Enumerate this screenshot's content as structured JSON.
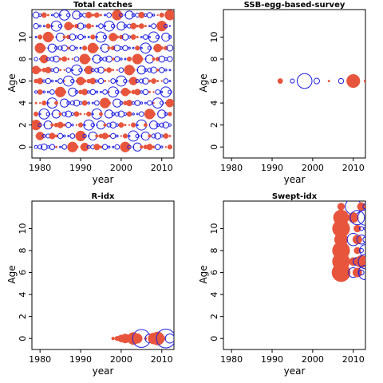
{
  "colors": {
    "positive": "#e8553d",
    "negative": "#1f1fe0",
    "axis": "#000000"
  },
  "chart_data": [
    {
      "type": "scatter",
      "subtype": "bubble-residuals",
      "title": "Total catches",
      "xlabel": "year",
      "ylabel": "Age",
      "xlim": [
        1978,
        2013
      ],
      "ylim": [
        -1,
        12.5
      ],
      "xticks": [
        1980,
        1990,
        2000,
        2010
      ],
      "yticks": [
        0,
        2,
        4,
        6,
        8,
        10
      ],
      "years": [
        1979,
        2012
      ],
      "ages": [
        0,
        12
      ],
      "size_pattern": [
        0.7,
        0.3,
        1.2,
        0.2,
        0.9,
        0.5,
        1.6,
        0.3,
        1.0,
        0.6,
        2.0,
        0.4,
        0.8
      ],
      "sign_pattern": [
        1,
        -1,
        -1,
        1,
        -1,
        1,
        -1,
        -1,
        1,
        -1,
        1,
        -1,
        1,
        -1,
        1,
        -1,
        -1
      ],
      "points": []
    },
    {
      "type": "scatter",
      "subtype": "bubble-residuals",
      "title": "SSB-egg-based-survey",
      "xlabel": "year",
      "ylabel": "Age",
      "xlim": [
        1978,
        2013
      ],
      "ylim": [
        -1,
        12.5
      ],
      "xticks": [
        1980,
        1990,
        2000,
        2010
      ],
      "yticks": [
        0,
        2,
        4,
        6,
        8,
        10
      ],
      "points": [
        {
          "year": 1992,
          "age": 6,
          "r": 1.0
        },
        {
          "year": 1995,
          "age": 6,
          "r": -0.8
        },
        {
          "year": 1998,
          "age": 6,
          "r": -2.9
        },
        {
          "year": 2001,
          "age": 6,
          "r": -1.1
        },
        {
          "year": 2004,
          "age": 6,
          "r": 0.4
        },
        {
          "year": 2007,
          "age": 6,
          "r": -1.0
        },
        {
          "year": 2010,
          "age": 6,
          "r": 2.6
        },
        {
          "year": 2013,
          "age": 6,
          "r": 0.6
        }
      ]
    },
    {
      "type": "scatter",
      "subtype": "bubble-residuals",
      "title": "R-idx",
      "xlabel": "year",
      "ylabel": "Age",
      "xlim": [
        1978,
        2013
      ],
      "ylim": [
        -1,
        12.5
      ],
      "xticks": [
        1980,
        1990,
        2000,
        2010
      ],
      "yticks": [
        0,
        2,
        4,
        6,
        8,
        10
      ],
      "points": [
        {
          "year": 1998,
          "age": 0,
          "r": 0.6
        },
        {
          "year": 1999,
          "age": 0,
          "r": 0.9
        },
        {
          "year": 2000,
          "age": 0,
          "r": 1.4
        },
        {
          "year": 2001,
          "age": 0,
          "r": 1.8
        },
        {
          "year": 2002,
          "age": 0,
          "r": 1.0
        },
        {
          "year": 2003,
          "age": 0,
          "r": 2.4
        },
        {
          "year": 2004,
          "age": 0,
          "r": 1.9
        },
        {
          "year": 2005,
          "age": 0,
          "r": -3.5
        },
        {
          "year": 2006,
          "age": 0,
          "r": 0.5
        },
        {
          "year": 2007,
          "age": 0,
          "r": -1.7
        },
        {
          "year": 2008,
          "age": 0,
          "r": 2.2
        },
        {
          "year": 2009,
          "age": 0,
          "r": 2.6
        },
        {
          "year": 2010,
          "age": 0,
          "r": 1.3
        },
        {
          "year": 2011,
          "age": 0,
          "r": -3.7
        },
        {
          "year": 2012,
          "age": 0,
          "r": -1.8
        }
      ]
    },
    {
      "type": "scatter",
      "subtype": "bubble-residuals",
      "title": "Swept-idx",
      "xlabel": "year",
      "ylabel": "Age",
      "xlim": [
        1978,
        2013
      ],
      "ylim": [
        -1,
        12.5
      ],
      "xticks": [
        1980,
        1990,
        2000,
        2010
      ],
      "yticks": [
        0,
        2,
        4,
        6,
        8,
        10
      ],
      "points": [
        {
          "year": 2007,
          "age": 12,
          "r": 1.4
        },
        {
          "year": 2010,
          "age": 12,
          "r": -3.1
        },
        {
          "year": 2012,
          "age": 12,
          "r": 1.6
        },
        {
          "year": 2013,
          "age": 12,
          "r": -1.0
        },
        {
          "year": 2007,
          "age": 11,
          "r": 3.0
        },
        {
          "year": 2010,
          "age": 11,
          "r": 2.0
        },
        {
          "year": 2011,
          "age": 11,
          "r": -2.8
        },
        {
          "year": 2013,
          "age": 11,
          "r": -3.0
        },
        {
          "year": 2007,
          "age": 10,
          "r": 3.4
        },
        {
          "year": 2011,
          "age": 10,
          "r": 1.4
        },
        {
          "year": 2012,
          "age": 10,
          "r": -0.8
        },
        {
          "year": 2013,
          "age": 10,
          "r": -0.6
        },
        {
          "year": 2007,
          "age": 9,
          "r": 2.6
        },
        {
          "year": 2010,
          "age": 9,
          "r": -2.4
        },
        {
          "year": 2011,
          "age": 9,
          "r": 1.8
        },
        {
          "year": 2012,
          "age": 9,
          "r": -1.8
        },
        {
          "year": 2013,
          "age": 9,
          "r": -1.0
        },
        {
          "year": 2007,
          "age": 8,
          "r": 3.4
        },
        {
          "year": 2011,
          "age": 8,
          "r": 1.3
        },
        {
          "year": 2012,
          "age": 8,
          "r": -0.8
        },
        {
          "year": 2013,
          "age": 8,
          "r": -2.3
        },
        {
          "year": 2007,
          "age": 7,
          "r": 3.4
        },
        {
          "year": 2010,
          "age": 7,
          "r": 1.6
        },
        {
          "year": 2011,
          "age": 7,
          "r": -1.6
        },
        {
          "year": 2012,
          "age": 7,
          "r": 2.4
        },
        {
          "year": 2013,
          "age": 7,
          "r": -2.8
        },
        {
          "year": 2007,
          "age": 6,
          "r": 3.6
        },
        {
          "year": 2010,
          "age": 6,
          "r": -1.9
        },
        {
          "year": 2011,
          "age": 6,
          "r": 1.8
        },
        {
          "year": 2012,
          "age": 6,
          "r": -1.0
        },
        {
          "year": 2013,
          "age": 6,
          "r": -2.8
        }
      ]
    }
  ]
}
